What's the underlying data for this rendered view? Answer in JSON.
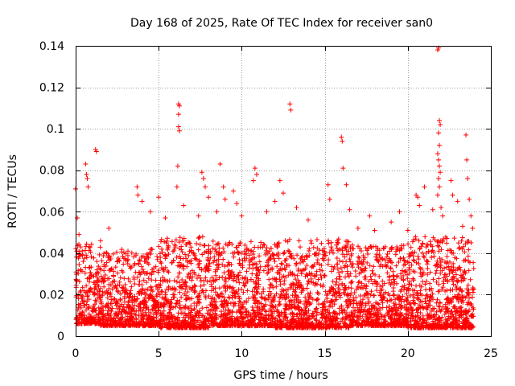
{
  "chart_data": {
    "type": "scatter",
    "title": "Day 168 of 2025, Rate Of TEC Index for receiver san0",
    "xlabel": "GPS time / hours",
    "ylabel": "ROTI / TECUs",
    "xlim": [
      0,
      25
    ],
    "ylim": [
      0,
      0.14
    ],
    "x_ticks": [
      0,
      5,
      10,
      15,
      20,
      25
    ],
    "x_tick_labels": [
      "0",
      "5",
      "10",
      "15",
      "20",
      "25"
    ],
    "y_ticks": [
      0,
      0.02,
      0.04,
      0.06,
      0.08,
      0.1,
      0.12,
      0.14
    ],
    "y_tick_labels": [
      "0",
      "0.02",
      "0.04",
      "0.06",
      "0.08",
      "0.1",
      "0.12",
      "0.14"
    ],
    "grid": true,
    "marker": "+",
    "color": "#ff0000",
    "series": [
      {
        "name": "ROTI",
        "points": [
          [
            0.0,
            0.071
          ],
          [
            0.1,
            0.057
          ],
          [
            0.2,
            0.049
          ],
          [
            0.3,
            0.043
          ],
          [
            0.6,
            0.083
          ],
          [
            0.65,
            0.078
          ],
          [
            0.7,
            0.076
          ],
          [
            0.75,
            0.072
          ],
          [
            1.2,
            0.09
          ],
          [
            1.25,
            0.089
          ],
          [
            1.5,
            0.046
          ],
          [
            2.0,
            0.052
          ],
          [
            3.7,
            0.072
          ],
          [
            3.75,
            0.068
          ],
          [
            4.0,
            0.065
          ],
          [
            4.5,
            0.06
          ],
          [
            5.0,
            0.067
          ],
          [
            5.4,
            0.057
          ],
          [
            6.2,
            0.112
          ],
          [
            6.25,
            0.111
          ],
          [
            6.2,
            0.107
          ],
          [
            6.2,
            0.101
          ],
          [
            6.25,
            0.099
          ],
          [
            6.15,
            0.082
          ],
          [
            6.1,
            0.072
          ],
          [
            6.5,
            0.063
          ],
          [
            7.4,
            0.058
          ],
          [
            7.6,
            0.079
          ],
          [
            7.7,
            0.076
          ],
          [
            7.8,
            0.072
          ],
          [
            8.0,
            0.067
          ],
          [
            8.5,
            0.06
          ],
          [
            8.7,
            0.083
          ],
          [
            8.9,
            0.072
          ],
          [
            9.0,
            0.066
          ],
          [
            9.5,
            0.07
          ],
          [
            9.7,
            0.064
          ],
          [
            10.0,
            0.058
          ],
          [
            10.8,
            0.081
          ],
          [
            10.9,
            0.078
          ],
          [
            10.7,
            0.075
          ],
          [
            11.5,
            0.06
          ],
          [
            12.0,
            0.065
          ],
          [
            12.3,
            0.075
          ],
          [
            12.5,
            0.069
          ],
          [
            12.9,
            0.112
          ],
          [
            12.95,
            0.109
          ],
          [
            13.3,
            0.062
          ],
          [
            14.0,
            0.056
          ],
          [
            15.2,
            0.073
          ],
          [
            15.3,
            0.066
          ],
          [
            16.0,
            0.096
          ],
          [
            16.05,
            0.094
          ],
          [
            16.1,
            0.081
          ],
          [
            16.3,
            0.073
          ],
          [
            16.5,
            0.061
          ],
          [
            17.0,
            0.052
          ],
          [
            17.7,
            0.058
          ],
          [
            18.0,
            0.051
          ],
          [
            19.0,
            0.055
          ],
          [
            19.5,
            0.06
          ],
          [
            20.0,
            0.051
          ],
          [
            20.5,
            0.068
          ],
          [
            20.6,
            0.067
          ],
          [
            20.7,
            0.063
          ],
          [
            21.0,
            0.072
          ],
          [
            21.5,
            0.061
          ],
          [
            21.8,
            0.138
          ],
          [
            21.85,
            0.139
          ],
          [
            21.9,
            0.104
          ],
          [
            21.95,
            0.102
          ],
          [
            21.85,
            0.098
          ],
          [
            21.9,
            0.092
          ],
          [
            21.8,
            0.088
          ],
          [
            21.85,
            0.085
          ],
          [
            21.9,
            0.082
          ],
          [
            21.95,
            0.079
          ],
          [
            21.85,
            0.076
          ],
          [
            21.9,
            0.072
          ],
          [
            21.8,
            0.068
          ],
          [
            22.0,
            0.062
          ],
          [
            22.1,
            0.058
          ],
          [
            22.6,
            0.075
          ],
          [
            22.7,
            0.068
          ],
          [
            23.0,
            0.065
          ],
          [
            23.3,
            0.053
          ],
          [
            23.5,
            0.097
          ],
          [
            23.55,
            0.085
          ],
          [
            23.6,
            0.076
          ],
          [
            23.7,
            0.066
          ],
          [
            23.8,
            0.058
          ],
          [
            23.9,
            0.052
          ]
        ],
        "bands": [
          {
            "x_range": [
              0.0,
              1.5
            ],
            "y_range": [
              0.006,
              0.045
            ],
            "density": "high"
          },
          {
            "x_range": [
              1.5,
              5.0
            ],
            "y_range": [
              0.005,
              0.042
            ],
            "density": "high"
          },
          {
            "x_range": [
              5.0,
              8.0
            ],
            "y_range": [
              0.004,
              0.048
            ],
            "density": "high"
          },
          {
            "x_range": [
              8.0,
              12.0
            ],
            "y_range": [
              0.005,
              0.046
            ],
            "density": "high"
          },
          {
            "x_range": [
              12.0,
              16.5
            ],
            "y_range": [
              0.004,
              0.047
            ],
            "density": "high"
          },
          {
            "x_range": [
              16.5,
              20.0
            ],
            "y_range": [
              0.005,
              0.044
            ],
            "density": "high"
          },
          {
            "x_range": [
              20.0,
              24.0
            ],
            "y_range": [
              0.004,
              0.048
            ],
            "density": "high"
          }
        ]
      }
    ]
  }
}
